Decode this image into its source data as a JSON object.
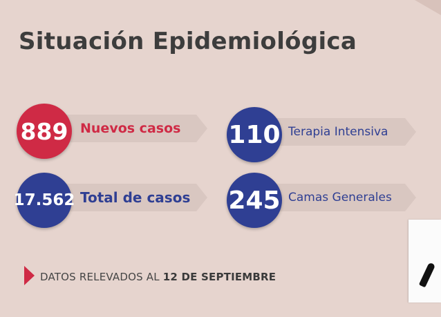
{
  "title": "Situación Epidemiológica",
  "stats": {
    "nuevos_casos": {
      "value": "889",
      "label": "Nuevos casos",
      "color": "#cf2a45"
    },
    "total_casos": {
      "value": "17.562",
      "label": "Total de casos",
      "color": "#2f3f93"
    },
    "terapia_intensiva": {
      "value": "110",
      "label": "Terapia Intensiva",
      "color": "#2f3f93"
    },
    "camas_generales": {
      "value": "245",
      "label": "Camas Generales",
      "color": "#2f3f93"
    }
  },
  "footer": {
    "prefix": "DATOS RELEVADOS AL",
    "date": "12 DE SEPTIEMBRE"
  },
  "icons": [
    "play-arrow-icon"
  ],
  "colors": {
    "background": "#e6d4ce",
    "accent_red": "#cf2a45",
    "accent_blue": "#2f3f93"
  }
}
